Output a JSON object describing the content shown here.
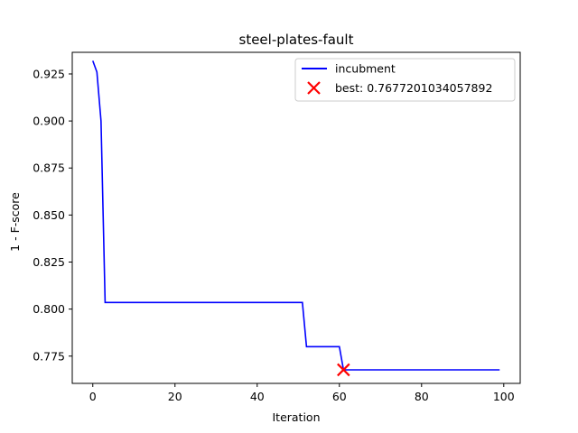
{
  "chart_data": {
    "type": "line",
    "title": "steel-plates-fault",
    "xlabel": "Iteration",
    "ylabel": "1 - F-score",
    "xlim": [
      -5,
      104
    ],
    "ylim": [
      0.7605,
      0.9365
    ],
    "xticks": [
      0,
      20,
      40,
      60,
      80,
      100
    ],
    "yticks": [
      0.775,
      0.8,
      0.825,
      0.85,
      0.875,
      0.9,
      0.925
    ],
    "xtick_labels": [
      "0",
      "20",
      "40",
      "60",
      "80",
      "100"
    ],
    "ytick_labels": [
      "0.775",
      "0.800",
      "0.825",
      "0.850",
      "0.875",
      "0.900",
      "0.925"
    ],
    "grid": false,
    "legend_position": "top-right",
    "series": [
      {
        "name": "incubment",
        "color": "#0000ff",
        "x": [
          0,
          1,
          2,
          3,
          51,
          52,
          60,
          61,
          99
        ],
        "y": [
          0.932,
          0.926,
          0.9,
          0.8035,
          0.8035,
          0.78,
          0.78,
          0.7677,
          0.7677
        ]
      }
    ],
    "best_point": {
      "label": "best: 0.7677201034057892",
      "x": 61,
      "y": 0.7677201034057892,
      "color": "#ff0000",
      "marker": "x"
    }
  }
}
